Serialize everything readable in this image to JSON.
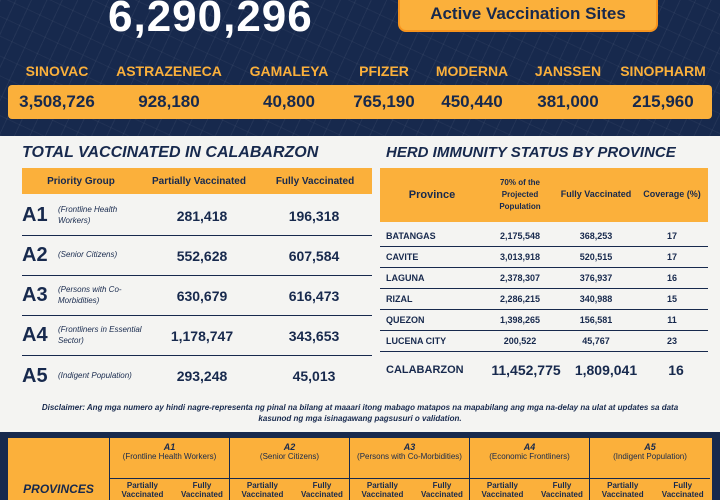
{
  "banner": {
    "total": "6,290,296",
    "active_sites_label": "Active Vaccination Sites"
  },
  "vaccines": {
    "names": [
      "SINOVAC",
      "ASTRAZENECA",
      "GAMALEYA",
      "PFIZER",
      "MODERNA",
      "JANSSEN",
      "SINOPHARM"
    ],
    "values": [
      "3,508,726",
      "928,180",
      "40,800",
      "765,190",
      "450,440",
      "381,000",
      "215,960"
    ]
  },
  "left_table": {
    "title": "TOTAL VACCINATED IN CALABARZON",
    "headers": [
      "Priority Group",
      "Partially Vaccinated",
      "Fully Vaccinated"
    ],
    "rows": [
      {
        "code": "A1",
        "desc": "(Frontline Health Workers)",
        "partial": "281,418",
        "full": "196,318"
      },
      {
        "code": "A2",
        "desc": "(Senior Citizens)",
        "partial": "552,628",
        "full": "607,584"
      },
      {
        "code": "A3",
        "desc": "(Persons with Co-Morbidities)",
        "partial": "630,679",
        "full": "616,473"
      },
      {
        "code": "A4",
        "desc": "(Frontliners in Essential Sector)",
        "partial": "1,178,747",
        "full": "343,653"
      },
      {
        "code": "A5",
        "desc": "(Indigent Population)",
        "partial": "293,248",
        "full": "45,013"
      }
    ]
  },
  "right_table": {
    "title": "HERD IMMUNITY STATUS BY PROVINCE",
    "headers": [
      "Province",
      "70% of the Projected Population",
      "Fully Vaccinated",
      "Coverage (%)"
    ],
    "rows": [
      {
        "province": "BATANGAS",
        "projected": "2,175,548",
        "full": "368,253",
        "coverage": "17"
      },
      {
        "province": "CAVITE",
        "projected": "3,013,918",
        "full": "520,515",
        "coverage": "17"
      },
      {
        "province": "LAGUNA",
        "projected": "2,378,307",
        "full": "376,937",
        "coverage": "16"
      },
      {
        "province": "RIZAL",
        "projected": "2,286,215",
        "full": "340,988",
        "coverage": "15"
      },
      {
        "province": "QUEZON",
        "projected": "1,398,265",
        "full": "156,581",
        "coverage": "11"
      },
      {
        "province": "LUCENA CITY",
        "projected": "200,522",
        "full": "45,767",
        "coverage": "23"
      }
    ],
    "total": {
      "province": "CALABARZON",
      "projected": "11,452,775",
      "full": "1,809,041",
      "coverage": "16"
    }
  },
  "disclaimer": "Disclaimer: Ang mga numero ay hindi nagre-representa ng pinal na bilang at maaari itong mabago matapos na mapabilang ang mga na-delay na ulat at updates sa data kasunod ng mga isinagawang pagsusuri o validation.",
  "bottom_table": {
    "provinces_label": "PROVINCES",
    "sub_partial": "Partially Vaccinated",
    "sub_full": "Fully Vaccinated",
    "columns": [
      {
        "code": "A1",
        "desc": "(Frontline Health Workers)"
      },
      {
        "code": "A2",
        "desc": "(Senior Citizens)"
      },
      {
        "code": "A3",
        "desc": "(Persons with Co-Morbidities)"
      },
      {
        "code": "A4",
        "desc": "(Economic Frontliners)"
      },
      {
        "code": "A5",
        "desc": "(Indigent Population)"
      }
    ]
  },
  "colors": {
    "navy": "#17294d",
    "accent": "#fbb03b",
    "background": "#f4f4f2"
  }
}
